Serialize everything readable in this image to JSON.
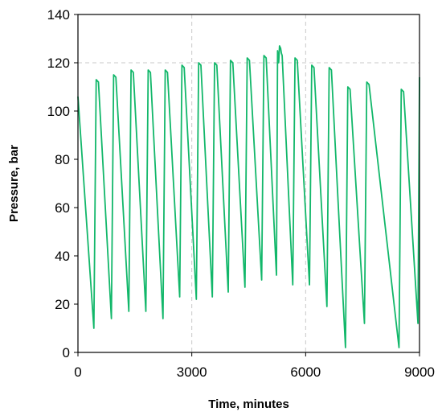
{
  "chart_data": {
    "type": "line",
    "xlabel": "Time, minutes",
    "ylabel": "Pressure, bar",
    "xlim": [
      0,
      9000
    ],
    "ylim": [
      0,
      140
    ],
    "x_ticks": [
      0,
      3000,
      6000,
      9000
    ],
    "y_ticks": [
      0,
      20,
      40,
      60,
      80,
      100,
      120,
      140
    ],
    "grid": "dashed, at x=3000 and x=6000 and y=120",
    "line_color": "#12b76a",
    "series": [
      {
        "x": [
          0,
          420,
          480,
          540,
          880,
          940,
          1000,
          1340,
          1400,
          1460,
          1790,
          1850,
          1910,
          2240,
          2300,
          2360,
          2680,
          2740,
          2800,
          3120,
          3180,
          3240,
          3540,
          3600,
          3660,
          3960,
          4020,
          4080,
          4400,
          4460,
          4520,
          4840,
          4900,
          4960,
          5230,
          5260,
          5290,
          5310,
          5340,
          5360,
          5380,
          5660,
          5720,
          5780,
          6100,
          6160,
          6220,
          6560,
          6620,
          6680,
          7050,
          7110,
          7170,
          7550,
          7610,
          7670,
          8460,
          8520,
          8580,
          8960,
          9000
        ],
        "y": [
          106,
          10,
          113,
          112,
          14,
          115,
          114,
          17,
          117,
          116,
          17,
          117,
          116,
          14,
          117,
          116,
          23,
          119,
          118,
          22,
          120,
          119,
          23,
          120,
          119,
          25,
          121,
          120,
          27,
          122,
          121,
          30,
          123,
          122,
          32,
          125,
          120,
          127,
          126,
          124,
          123,
          28,
          122,
          121,
          28,
          119,
          118,
          19,
          118,
          117,
          2,
          110,
          109,
          12,
          112,
          111,
          2,
          109,
          108,
          12,
          114
        ]
      }
    ]
  }
}
